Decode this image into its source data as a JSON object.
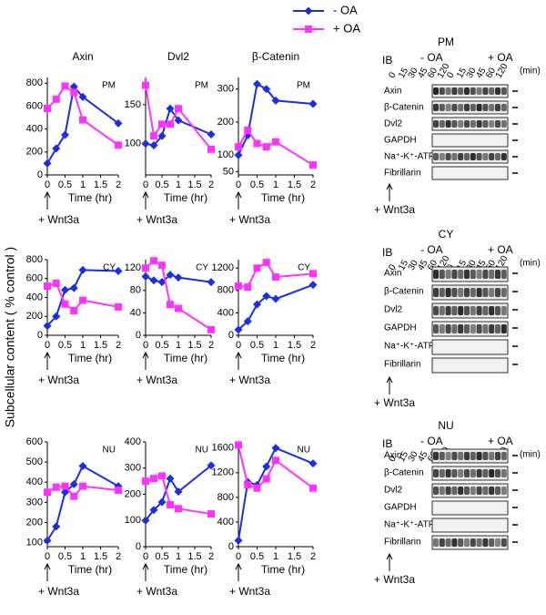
{
  "legend": [
    {
      "name": "- OA",
      "color": "#1a2ee6"
    },
    {
      "name": "+ OA",
      "color": "#ff33ff"
    }
  ],
  "y_label": "Subcellular content ( % control )",
  "chart_data": [
    {
      "type": "line",
      "title": "Axin",
      "panel_label": "PM",
      "x_label": "Time (hr)",
      "annotation": "+ Wnt3a",
      "x": [
        0,
        0.25,
        0.5,
        0.75,
        1,
        2
      ],
      "xlim": [
        0,
        2
      ],
      "xticks": [
        0,
        0.5,
        1,
        1.5,
        2
      ],
      "ylim": [
        0,
        850
      ],
      "yticks": [
        0,
        200,
        400,
        600,
        800
      ],
      "series": [
        {
          "values": [
            100,
            230,
            350,
            770,
            680,
            450
          ]
        },
        {
          "values": [
            580,
            660,
            775,
            720,
            480,
            260
          ]
        }
      ]
    },
    {
      "type": "line",
      "title": "Dvl2",
      "panel_label": "PM",
      "x_label": "Time (hr)",
      "annotation": "+ Wnt3a",
      "x": [
        0,
        0.25,
        0.5,
        0.75,
        1,
        2
      ],
      "xlim": [
        0,
        2
      ],
      "xticks": [
        0,
        0.5,
        1,
        1.5,
        2
      ],
      "ylim": [
        60,
        185
      ],
      "yticks": [
        100,
        150
      ],
      "series": [
        {
          "values": [
            100,
            98,
            110,
            145,
            130,
            112
          ]
        },
        {
          "values": [
            175,
            110,
            125,
            125,
            145,
            93
          ]
        }
      ]
    },
    {
      "type": "line",
      "title": "β-Catenin",
      "panel_label": "PM",
      "x_label": "Time (hr)",
      "annotation": "+ Wnt3a",
      "x": [
        0,
        0.25,
        0.5,
        0.75,
        1,
        2
      ],
      "xlim": [
        0,
        2
      ],
      "xticks": [
        0,
        0.5,
        1,
        1.5,
        2
      ],
      "ylim": [
        40,
        335
      ],
      "yticks": [
        50,
        100,
        200,
        300
      ],
      "series": [
        {
          "values": [
            100,
            160,
            315,
            300,
            265,
            255
          ]
        },
        {
          "values": [
            125,
            175,
            135,
            125,
            140,
            70
          ]
        }
      ]
    },
    {
      "type": "line",
      "panel_label": "CY",
      "x_label": "Time (hr)",
      "annotation": "+ Wnt3a",
      "x": [
        0,
        0.25,
        0.5,
        0.75,
        1,
        2
      ],
      "xlim": [
        0,
        2
      ],
      "xticks": [
        0,
        0.5,
        1,
        1.5,
        2
      ],
      "ylim": [
        0,
        800
      ],
      "yticks": [
        0,
        200,
        400,
        600,
        800
      ],
      "series": [
        {
          "values": [
            100,
            200,
            480,
            500,
            690,
            680
          ]
        },
        {
          "values": [
            520,
            550,
            330,
            260,
            370,
            300
          ]
        }
      ]
    },
    {
      "type": "line",
      "panel_label": "CY",
      "x_label": "Time (hr)",
      "annotation": "+ Wnt3a",
      "x": [
        0,
        0.25,
        0.5,
        0.75,
        1,
        2
      ],
      "xlim": [
        0,
        2
      ],
      "xticks": [
        0,
        0.5,
        1,
        1.5,
        2
      ],
      "ylim": [
        0,
        135
      ],
      "yticks": [
        0,
        40,
        80,
        120
      ],
      "series": [
        {
          "values": [
            105,
            98,
            95,
            108,
            103,
            95
          ]
        },
        {
          "values": [
            120,
            133,
            125,
            55,
            48,
            10
          ]
        }
      ]
    },
    {
      "type": "line",
      "panel_label": "CY",
      "x_label": "Time (hr)",
      "annotation": "+ Wnt3a",
      "x": [
        0,
        0.25,
        0.5,
        0.75,
        1,
        2
      ],
      "xlim": [
        0,
        2
      ],
      "xticks": [
        0,
        0.5,
        1,
        1.5,
        2
      ],
      "ylim": [
        0,
        1350
      ],
      "yticks": [
        0,
        400,
        800,
        1200
      ],
      "series": [
        {
          "values": [
            100,
            250,
            550,
            700,
            650,
            900
          ]
        },
        {
          "values": [
            880,
            860,
            1200,
            1300,
            1040,
            1100
          ]
        }
      ]
    },
    {
      "type": "line",
      "panel_label": "NU",
      "x_label": "Time (hr)",
      "annotation": "+ Wnt3a",
      "x": [
        0,
        0.25,
        0.5,
        0.75,
        1,
        2
      ],
      "xlim": [
        0,
        2
      ],
      "xticks": [
        0,
        0.5,
        1,
        1.5,
        2
      ],
      "ylim": [
        80,
        600
      ],
      "yticks": [
        100,
        200,
        300,
        400,
        500,
        600
      ],
      "series": [
        {
          "values": [
            110,
            180,
            350,
            390,
            480,
            380
          ]
        },
        {
          "values": [
            350,
            375,
            380,
            330,
            380,
            360
          ]
        }
      ]
    },
    {
      "type": "line",
      "panel_label": "NU",
      "x_label": "Time (hr)",
      "annotation": "+ Wnt3a",
      "x": [
        0,
        0.25,
        0.5,
        0.75,
        1,
        2
      ],
      "xlim": [
        0,
        2
      ],
      "xticks": [
        0,
        0.5,
        1,
        1.5,
        2
      ],
      "ylim": [
        0,
        400
      ],
      "yticks": [
        0,
        100,
        200,
        300,
        400
      ],
      "series": [
        {
          "values": [
            100,
            140,
            170,
            260,
            210,
            310
          ]
        },
        {
          "values": [
            250,
            260,
            270,
            160,
            145,
            125
          ]
        }
      ]
    },
    {
      "type": "line",
      "panel_label": "NU",
      "x_label": "Time (hr)",
      "annotation": "+ Wnt3a",
      "x": [
        0,
        0.25,
        0.5,
        0.75,
        1,
        2
      ],
      "xlim": [
        0,
        2
      ],
      "xticks": [
        0,
        0.5,
        1,
        1.5,
        2
      ],
      "ylim": [
        0,
        1700
      ],
      "yticks": [
        0,
        400,
        800,
        1200,
        1600
      ],
      "series": [
        {
          "values": [
            100,
            1050,
            1000,
            1300,
            1600,
            1350
          ]
        },
        {
          "values": [
            1650,
            1000,
            950,
            1100,
            1400,
            950
          ]
        }
      ]
    }
  ],
  "blots": [
    {
      "compartment": "PM",
      "ib": "IB",
      "conditions": [
        "- OA",
        "+ OA"
      ],
      "times": [
        0,
        15,
        30,
        45,
        60,
        120
      ],
      "unit": "(min)",
      "rows": [
        "Axin",
        "β-Catenin",
        "Dvl2",
        "GAPDH",
        "Na⁺-K⁺-ATPase",
        "Fibrillarin"
      ],
      "annotation": "+ Wnt3a"
    },
    {
      "compartment": "CY",
      "ib": "IB",
      "conditions": [
        "- OA",
        "+ OA"
      ],
      "times": [
        0,
        15,
        30,
        45,
        60,
        120
      ],
      "unit": "(min)",
      "rows": [
        "Axin",
        "β-Catenin",
        "Dvl2",
        "GAPDH",
        "Na⁺-K⁺-ATPase",
        "Fibrillarin"
      ],
      "annotation": "+ Wnt3a"
    },
    {
      "compartment": "NU",
      "ib": "IB",
      "conditions": [
        "- OA",
        "+ OA"
      ],
      "times": [
        0,
        15,
        30,
        45,
        60,
        120
      ],
      "unit": "(min)",
      "rows": [
        "Axin",
        "β-Catenin",
        "Dvl2",
        "GAPDH",
        "Na⁺-K⁺-ATPase",
        "Fibrillarin"
      ],
      "annotation": "+ Wnt3a"
    }
  ]
}
